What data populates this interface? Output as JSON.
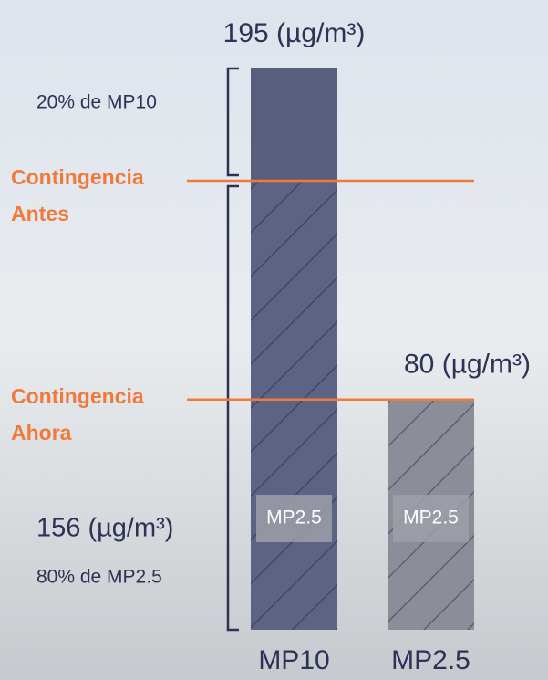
{
  "chart_data": {
    "type": "bar",
    "categories": [
      "MP10",
      "MP2.5"
    ],
    "values": [
      195,
      80
    ],
    "value_labels": [
      "195 (µg/m³)",
      "80 (µg/m³)"
    ],
    "colors": [
      "#585e7b",
      "#8b8e98"
    ],
    "hatch_color": "#2f3350",
    "bar_inner_labels": [
      "MP2.5",
      "MP2.5"
    ],
    "fine_fraction": {
      "value": 156,
      "label": "156 (µg/m³)",
      "share_label": "80% de MP2.5"
    },
    "coarse_share_label": "20% de MP10",
    "thresholds": [
      {
        "lines": [
          "Contingencia",
          "Antes"
        ]
      },
      {
        "lines": [
          "Contingencia",
          "Ahora"
        ]
      }
    ],
    "threshold_color": "#f07a3c",
    "ylim": [
      0,
      195
    ]
  }
}
